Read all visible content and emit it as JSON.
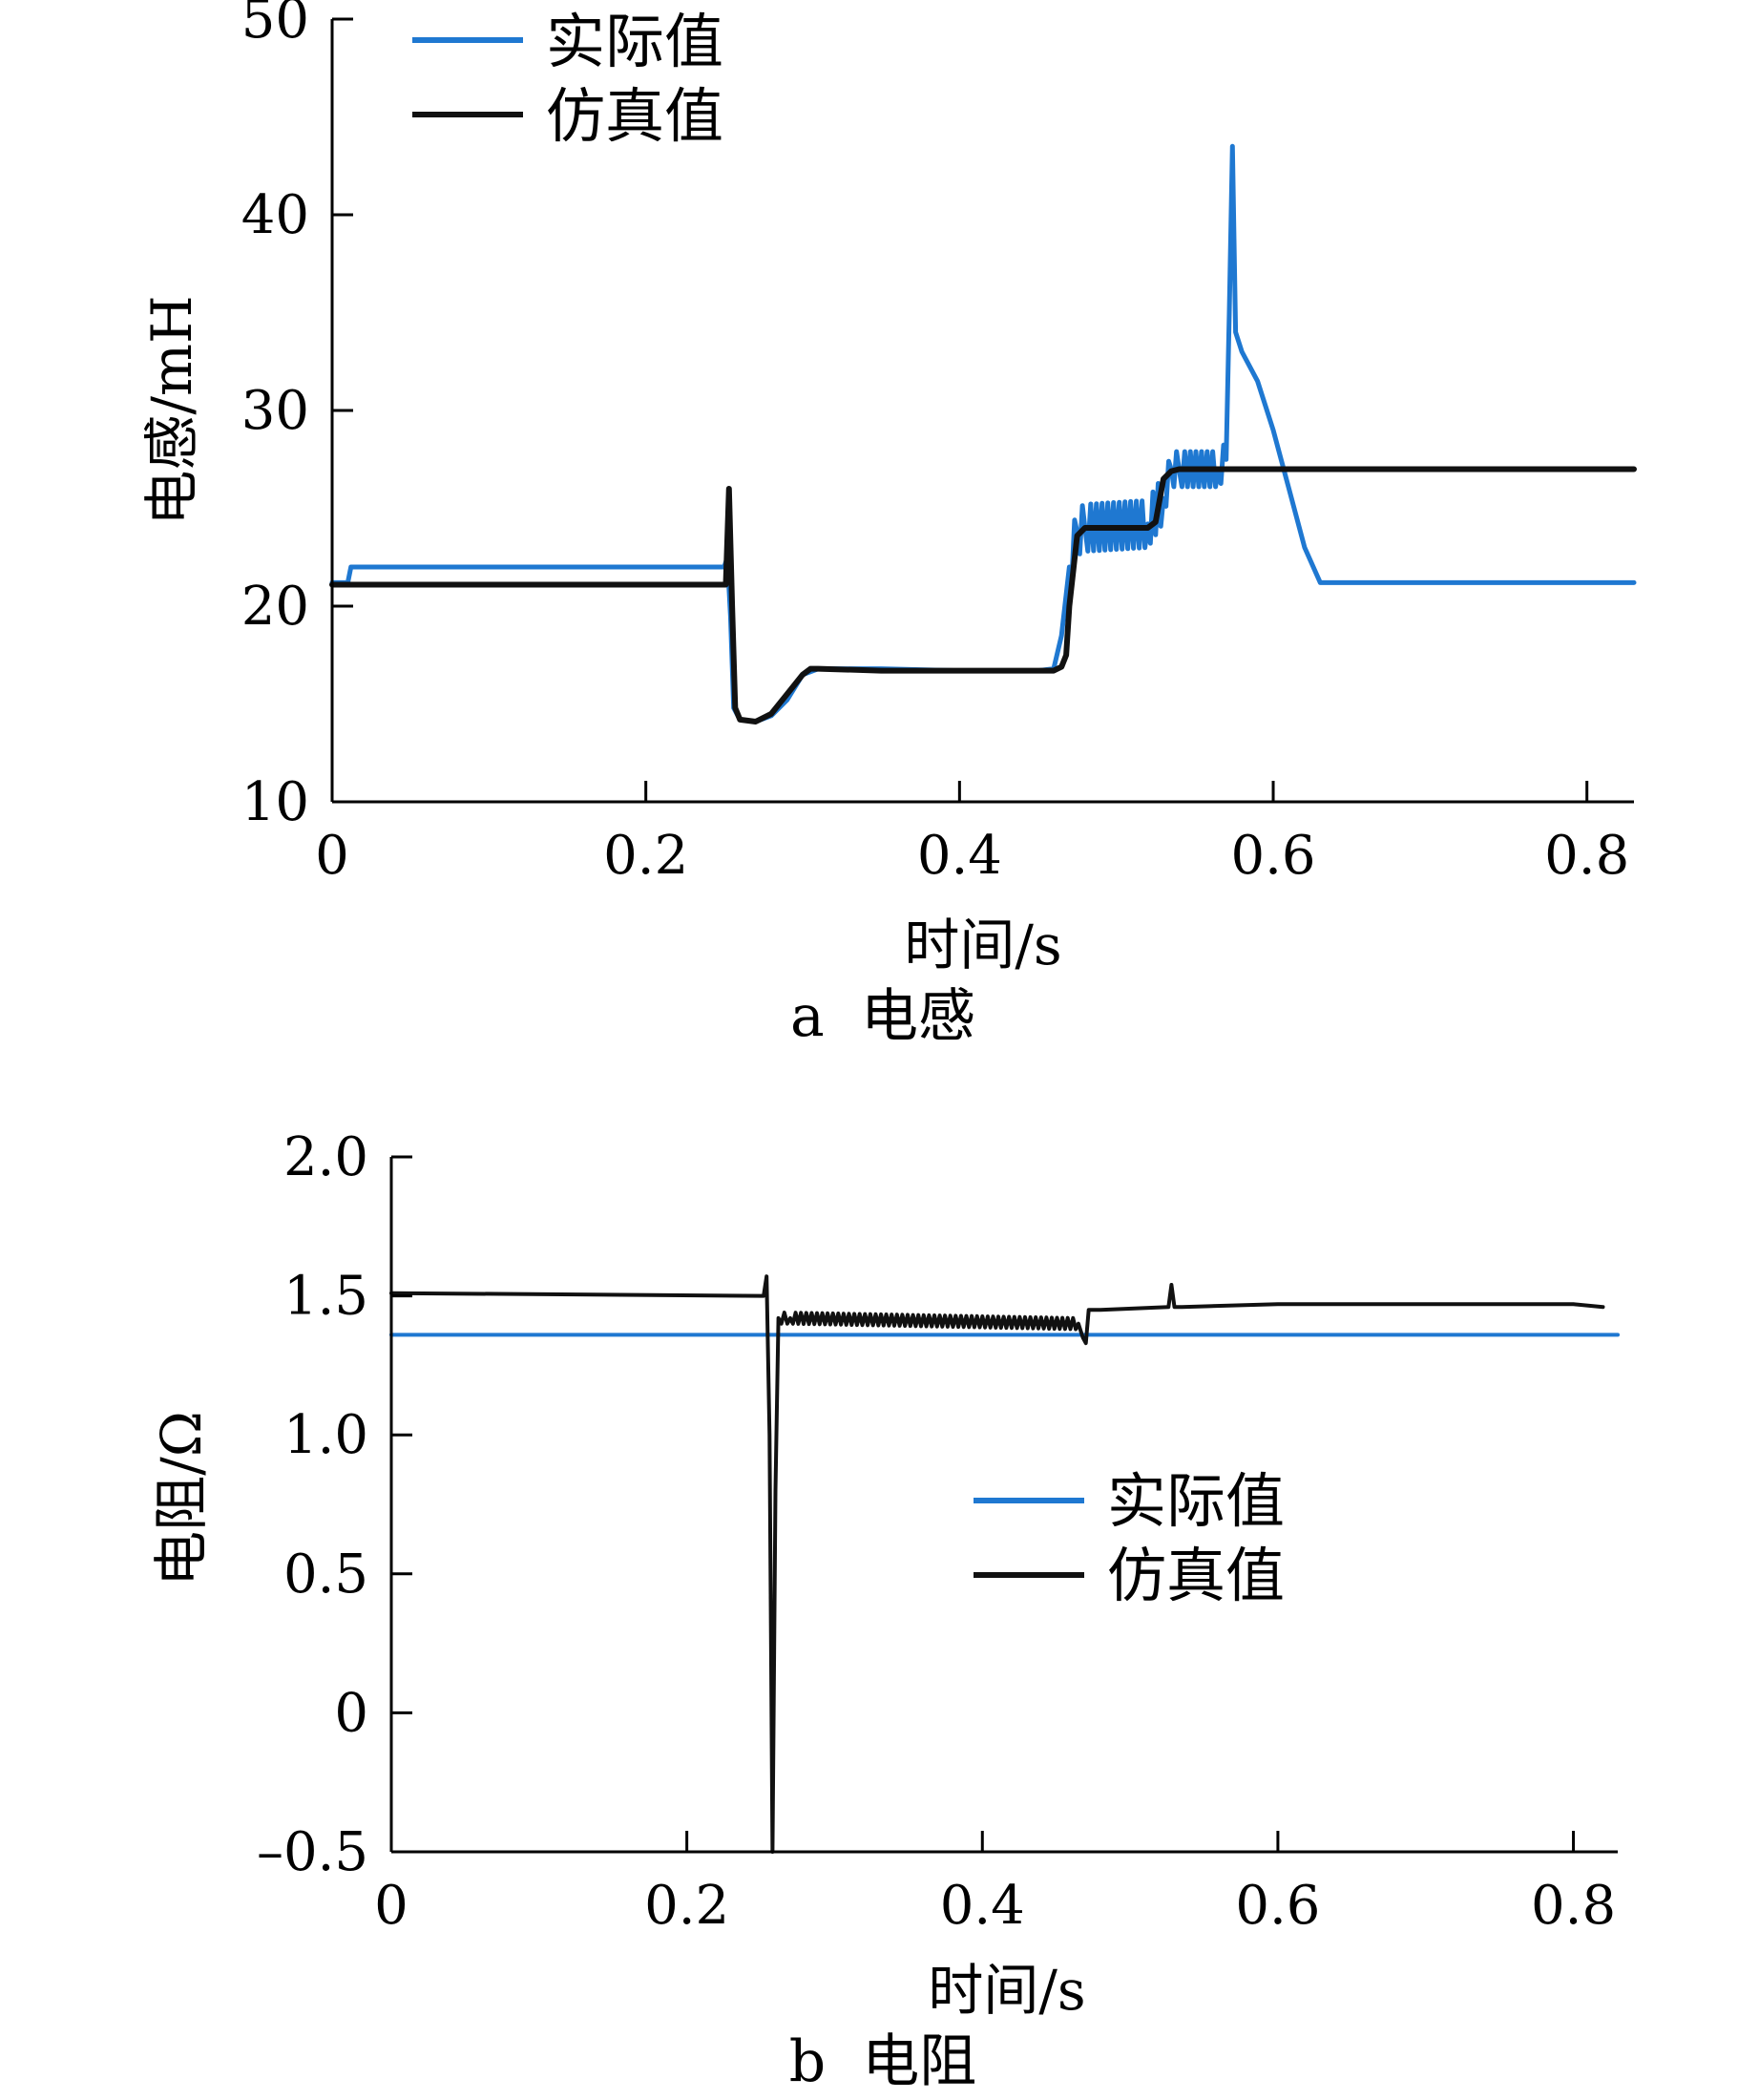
{
  "chart_data": [
    {
      "type": "line",
      "caption": "a  电感",
      "xlabel": "时间/s",
      "ylabel": "电感/mH",
      "xlim": [
        0,
        0.83
      ],
      "ylim": [
        10,
        50
      ],
      "xticks": [
        0,
        0.2,
        0.4,
        0.6,
        0.8
      ],
      "xtick_labels": [
        "0",
        "0.2",
        "0.4",
        "0.6",
        "0.8"
      ],
      "yticks": [
        10,
        20,
        30,
        40,
        50
      ],
      "ytick_labels": [
        "10",
        "20",
        "30",
        "40",
        "50"
      ],
      "grid": false,
      "legend_position": "top-left",
      "series": [
        {
          "name": "实际值",
          "color": "#1f78d1",
          "x": [
            0,
            0.01,
            0.012,
            0.25,
            0.252,
            0.254,
            0.256,
            0.26,
            0.27,
            0.28,
            0.29,
            0.3,
            0.31,
            0.35,
            0.4,
            0.45,
            0.46,
            0.465,
            0.47,
            0.475,
            0.48,
            0.52,
            0.53,
            0.535,
            0.54,
            0.565,
            0.57,
            0.572,
            0.574,
            0.576,
            0.58,
            0.59,
            0.6,
            0.61,
            0.62,
            0.63,
            0.7,
            0.83
          ],
          "y": [
            21.2,
            21.2,
            22,
            22,
            22.5,
            19.5,
            14.8,
            14.2,
            14.1,
            14.4,
            15.2,
            16.5,
            16.8,
            16.8,
            16.7,
            16.7,
            16.8,
            18.5,
            22,
            23.8,
            24,
            24.2,
            25.5,
            27,
            27,
            27,
            27.5,
            35,
            43.5,
            34,
            33,
            31.5,
            29,
            26,
            23,
            21.2,
            21.2,
            21.2
          ],
          "oscillation": [
            {
              "x_range": [
                0.47,
                0.53
              ],
              "amplitude": 1.2
            },
            {
              "x_range": [
                0.53,
                0.57
              ],
              "amplitude": 0.9
            }
          ]
        },
        {
          "name": "仿真值",
          "color": "#111111",
          "x": [
            0,
            0.25,
            0.251,
            0.253,
            0.255,
            0.257,
            0.26,
            0.27,
            0.28,
            0.29,
            0.3,
            0.305,
            0.31,
            0.35,
            0.4,
            0.45,
            0.46,
            0.465,
            0.468,
            0.47,
            0.475,
            0.48,
            0.52,
            0.525,
            0.53,
            0.535,
            0.54,
            0.83
          ],
          "y": [
            21.1,
            21.1,
            21.1,
            26,
            20,
            14.8,
            14.2,
            14.1,
            14.5,
            15.5,
            16.5,
            16.8,
            16.8,
            16.7,
            16.7,
            16.7,
            16.7,
            16.9,
            17.5,
            20,
            23.6,
            24,
            24,
            24.3,
            26.5,
            26.9,
            27,
            27
          ]
        }
      ]
    },
    {
      "type": "line",
      "caption": "b  电阻",
      "xlabel": "时间/s",
      "ylabel": "电阻/Ω",
      "xlim": [
        0,
        0.83
      ],
      "ylim": [
        -0.5,
        2.0
      ],
      "xticks": [
        0,
        0.2,
        0.4,
        0.6,
        0.8
      ],
      "xtick_labels": [
        "0",
        "0.2",
        "0.4",
        "0.6",
        "0.8"
      ],
      "yticks": [
        -0.5,
        0,
        0.5,
        1.0,
        1.5,
        2.0
      ],
      "ytick_labels": [
        "–0.5",
        "0",
        "0.5",
        "1.0",
        "1.5",
        "2.0"
      ],
      "grid": false,
      "legend_position": "center-right",
      "series": [
        {
          "name": "实际值",
          "color": "#1f78d1",
          "x": [
            0,
            0.83
          ],
          "y": [
            1.36,
            1.36
          ]
        },
        {
          "name": "仿真值",
          "color": "#111111",
          "x": [
            0,
            0.25,
            0.252,
            0.254,
            0.256,
            0.258,
            0.26,
            0.262,
            0.27,
            0.465,
            0.468,
            0.47,
            0.472,
            0.48,
            0.526,
            0.528,
            0.53,
            0.532,
            0.535,
            0.6,
            0.7,
            0.8,
            0.82
          ],
          "y": [
            1.51,
            1.5,
            1.5,
            1.57,
            1.0,
            -0.5,
            0.8,
            1.42,
            1.42,
            1.4,
            1.35,
            1.33,
            1.45,
            1.45,
            1.46,
            1.54,
            1.46,
            1.46,
            1.46,
            1.47,
            1.47,
            1.47,
            1.46
          ],
          "oscillation": [
            {
              "x_range": [
                0.262,
                0.466
              ],
              "amplitude": 0.02
            }
          ]
        }
      ]
    }
  ]
}
